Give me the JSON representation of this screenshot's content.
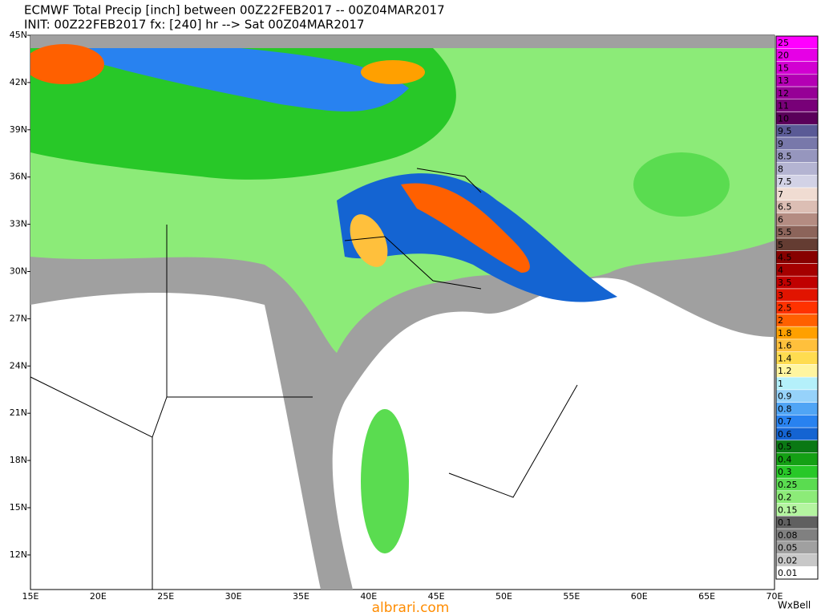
{
  "header": {
    "title": "ECMWF Total Precip [inch] between 00Z22FEB2017 -- 00Z04MAR2017",
    "init": "INIT: 00Z22FEB2017 fx: [240] hr --> Sat 00Z04MAR2017"
  },
  "map": {
    "lat_labels": [
      "45N",
      "42N",
      "39N",
      "36N",
      "33N",
      "30N",
      "27N",
      "24N",
      "21N",
      "18N",
      "15N",
      "12N"
    ],
    "lon_labels": [
      "15E",
      "20E",
      "25E",
      "30E",
      "35E",
      "40E",
      "45E",
      "50E",
      "55E",
      "60E",
      "65E",
      "70E"
    ]
  },
  "colorbar": {
    "levels": [
      "0.01",
      "0.02",
      "0.05",
      "0.08",
      "0.1",
      "0.15",
      "0.2",
      "0.25",
      "0.3",
      "0.4",
      "0.5",
      "0.6",
      "0.7",
      "0.8",
      "0.9",
      "1",
      "1.2",
      "1.4",
      "1.6",
      "1.8",
      "2",
      "2.5",
      "3",
      "3.5",
      "4",
      "4.5",
      "5",
      "5.5",
      "6",
      "6.5",
      "7",
      "7.5",
      "8",
      "8.5",
      "9",
      "9.5",
      "10",
      "11",
      "12",
      "13",
      "15",
      "20",
      "25"
    ],
    "colors": [
      "#ffffff",
      "#c8c8c8",
      "#a0a0a0",
      "#808080",
      "#606060",
      "#b4f5a0",
      "#8ceb78",
      "#5adc50",
      "#28c828",
      "#14a014",
      "#0a7814",
      "#1464d2",
      "#2882f0",
      "#50a5f5",
      "#96d2fa",
      "#b4f0fa",
      "#fff5a0",
      "#ffdc50",
      "#ffc03c",
      "#ffa000",
      "#ff6000",
      "#ff3200",
      "#e11400",
      "#c00000",
      "#a50000",
      "#870000",
      "#643c32",
      "#8c645a",
      "#b48c82",
      "#dcbeb4",
      "#f0dcd2",
      "#d2d2e6",
      "#b4b4d2",
      "#9696be",
      "#7878aa",
      "#5a5a96",
      "#5a005a",
      "#780078",
      "#960096",
      "#b400b4",
      "#d200d2",
      "#e600e6",
      "#ff00ff"
    ]
  },
  "footer": {
    "credit": "WxBell",
    "watermark": "albrari.com"
  }
}
